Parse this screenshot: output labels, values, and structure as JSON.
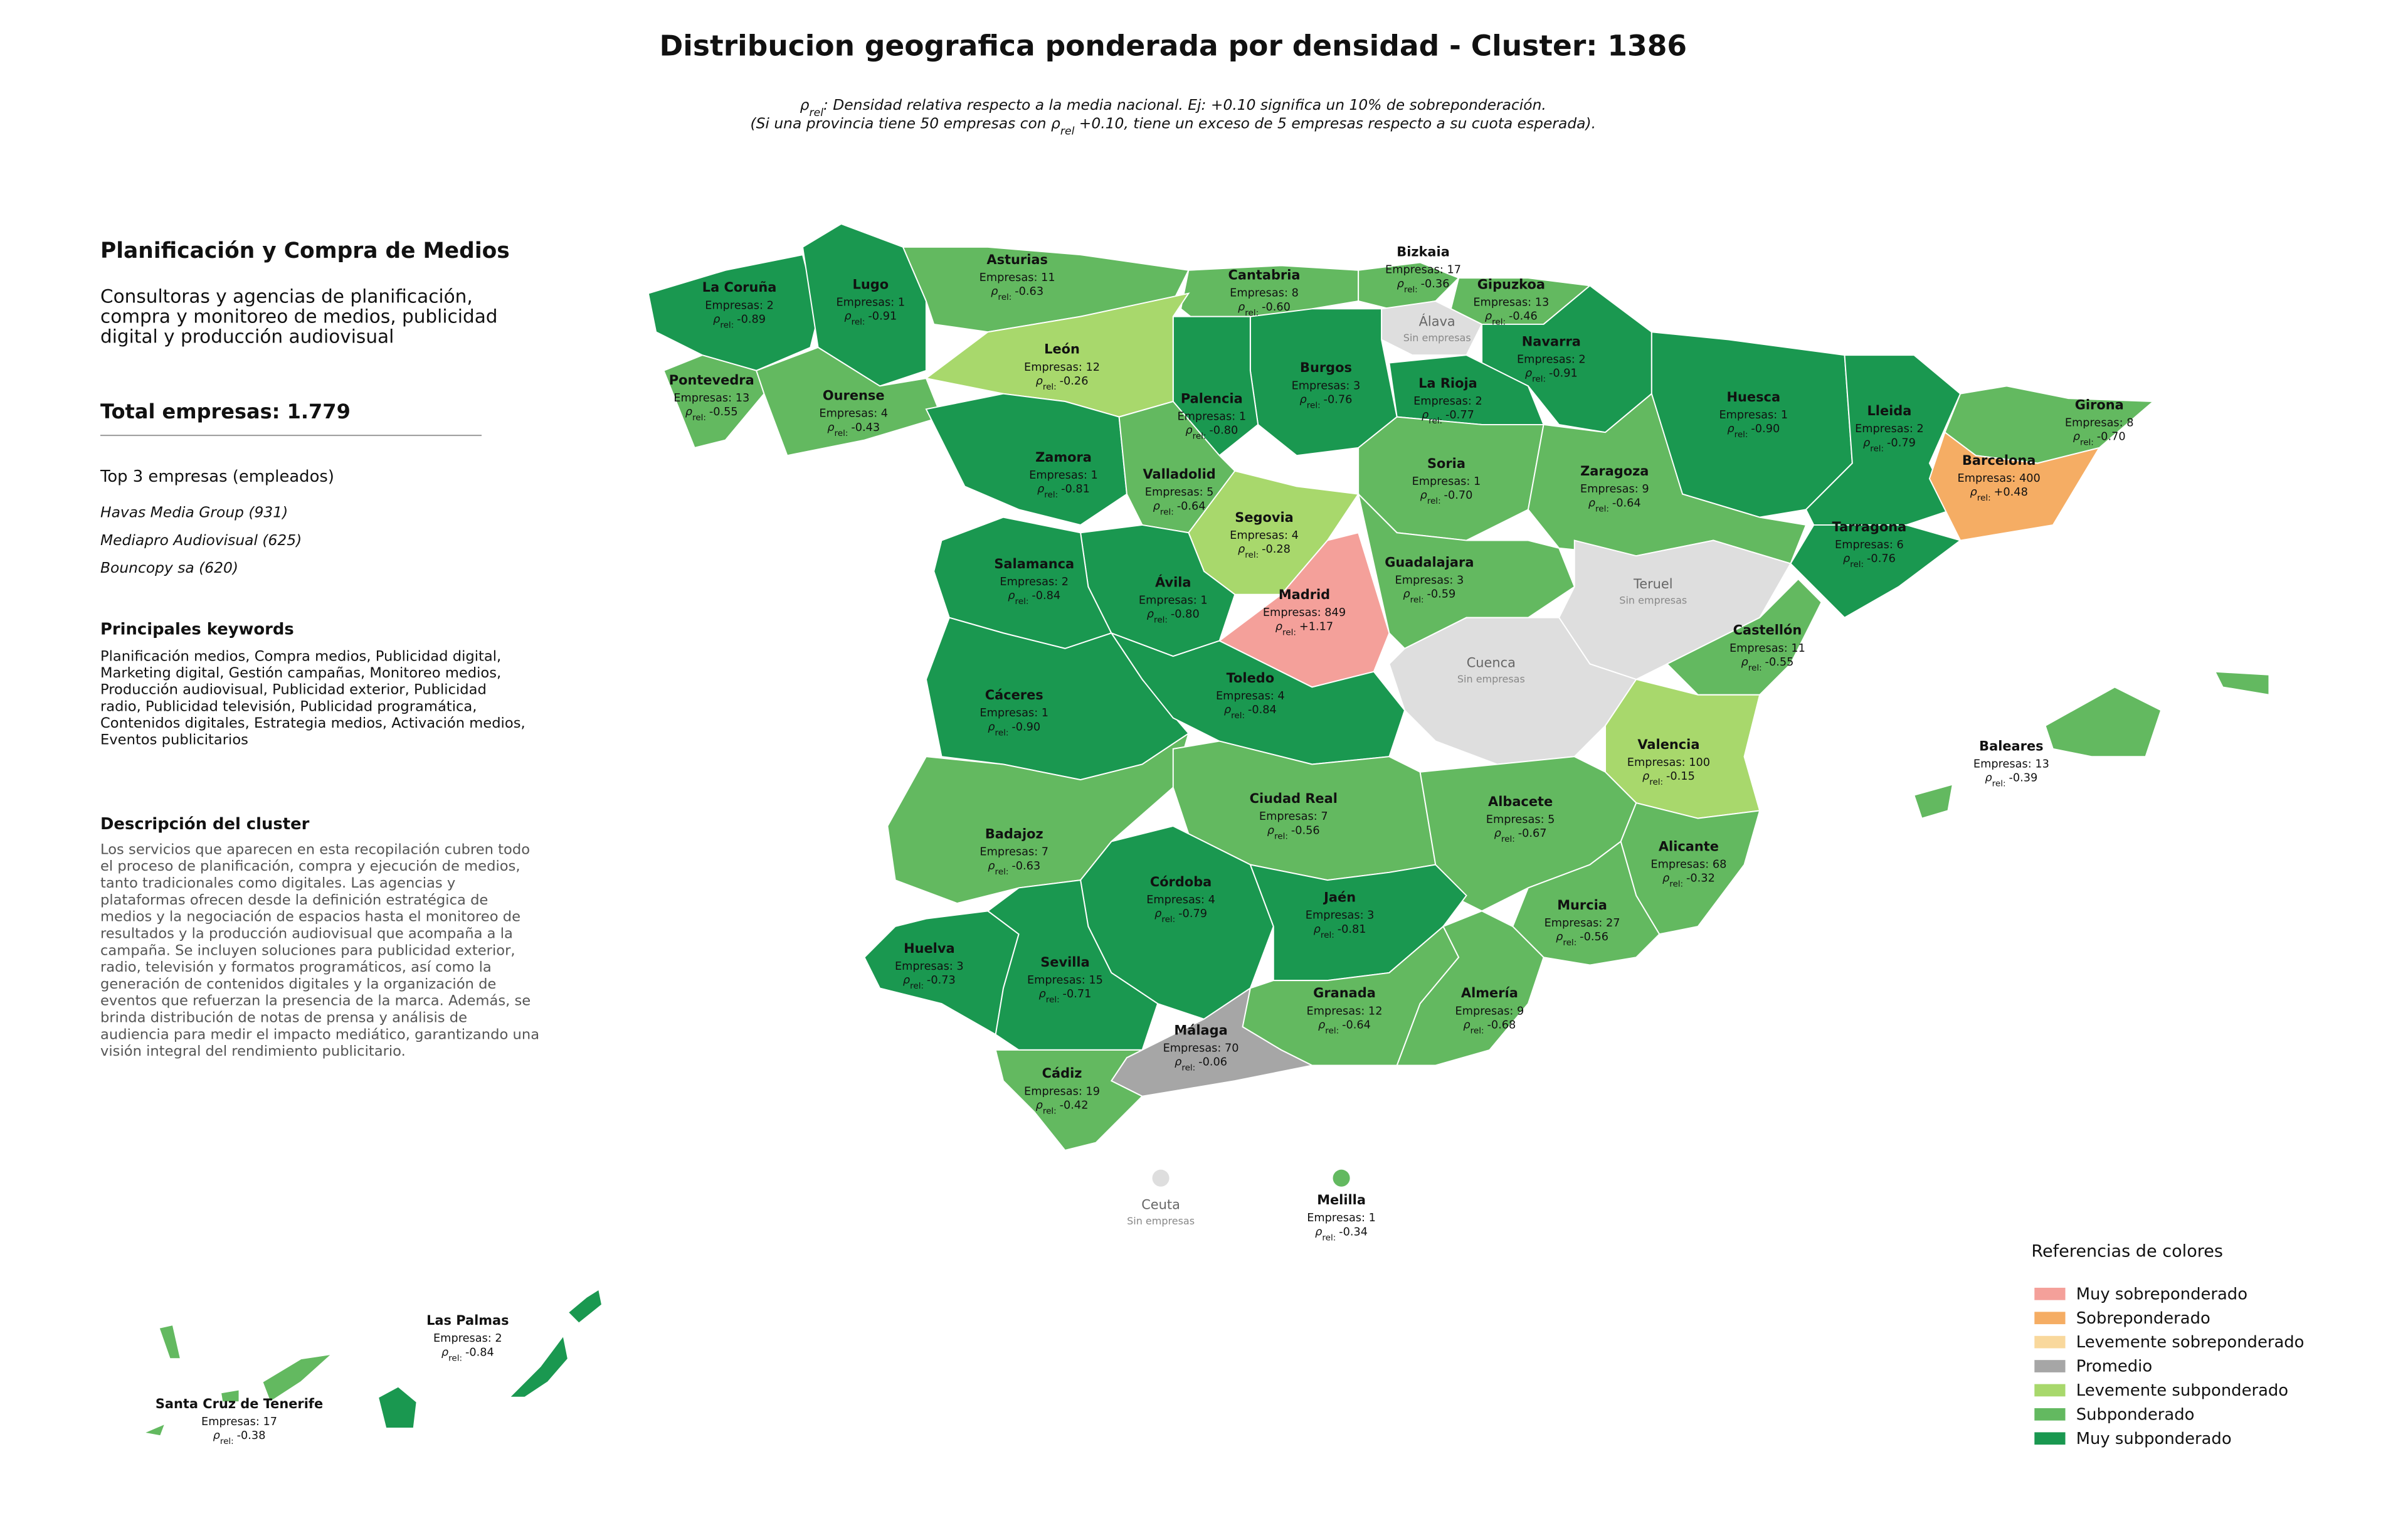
{
  "title": "Distribucion geografica ponderada por densidad - Cluster: 1386",
  "subtitle": [
    [
      {
        "sub_symbol": "ρ"
      },
      {
        "sub": "rel"
      },
      {
        "text": ": Densidad relativa respecto a la media nacional. Ej: +0.10 significa un 10% de sobreponderación."
      }
    ],
    [
      {
        "text": "(Si una provincia tiene 50 empresas con "
      },
      {
        "sub_symbol": "ρ"
      },
      {
        "sub": "rel"
      },
      {
        "text": " +0.10, tiene un exceso de 5 empresas respecto a su cuota esperada)."
      }
    ]
  ],
  "panel": {
    "heading": "Planificación y Compra de Medios",
    "description_lines": [
      "Consultoras y agencias de planificación,",
      "compra y monitoreo de medios, publicidad",
      "digital y producción audiovisual"
    ],
    "total": "Total empresas: 1.779",
    "top_title": "Top 3 empresas (empleados)",
    "top": [
      "Havas Media Group (931)",
      "Mediapro Audiovisual (625)",
      "Bouncopy sa (620)"
    ],
    "keywords_title": "Principales keywords",
    "keywords_lines": [
      "Planificación medios, Compra medios, Publicidad digital,",
      "Marketing digital, Gestión campañas, Monitoreo medios,",
      "Producción audiovisual, Publicidad exterior, Publicidad",
      "radio, Publicidad televisión, Publicidad programática,",
      "Contenidos digitales, Estrategia medios, Activación medios,",
      "Eventos publicitarios"
    ],
    "cluster_title": "Descripción del cluster",
    "cluster_lines": [
      "Los servicios que aparecen en esta recopilación cubren todo",
      "el proceso de planificación, compra y ejecución de medios,",
      "tanto tradicionales como digitales. Las agencias y",
      "plataformas ofrecen desde la definición estratégica de",
      "medios y la negociación de espacios hasta el monitoreo de",
      "resultados y la producción audiovisual que acompaña a la",
      "campaña. Se incluyen soluciones para publicidad exterior,",
      "radio, televisión y formatos programáticos, así como la",
      "generación de contenidos digitales y la organización de",
      "eventos que refuerzan la presencia de la marca. Además, se",
      "brinda distribución de notas de prensa y análisis de",
      "audiencia para medir el impacto mediático, garantizando una",
      "visión integral del rendimiento publicitario."
    ]
  },
  "rho_symbol": "ρ",
  "rho_subscript": "rel:",
  "no_data_color": "#dedede",
  "provinces": [
    {
      "name": "La Coruña",
      "empresas": "Empresas: 2",
      "rho": "-0.89",
      "color": "#1a9850"
    },
    {
      "name": "Lugo",
      "empresas": "Empresas: 1",
      "rho": "-0.91",
      "color": "#1a9850"
    },
    {
      "name": "Asturias",
      "empresas": "Empresas: 11",
      "rho": "-0.63",
      "color": "#63b960"
    },
    {
      "name": "Cantabria",
      "empresas": "Empresas: 8",
      "rho": "-0.60",
      "color": "#63b960"
    },
    {
      "name": "Bizkaia",
      "empresas": "Empresas: 17",
      "rho": "-0.36",
      "color": "#63b960"
    },
    {
      "name": "Gipuzkoa",
      "empresas": "Empresas: 13",
      "rho": "-0.46",
      "color": "#63b960"
    },
    {
      "name": "Álava",
      "status": "Sin empresas"
    },
    {
      "name": "Navarra",
      "empresas": "Empresas: 2",
      "rho": "-0.91",
      "color": "#1a9850"
    },
    {
      "name": "La Rioja",
      "empresas": "Empresas: 2",
      "rho": "-0.77",
      "color": "#1a9850"
    },
    {
      "name": "Burgos",
      "empresas": "Empresas: 3",
      "rho": "-0.76",
      "color": "#1a9850"
    },
    {
      "name": "Palencia",
      "empresas": "Empresas: 1",
      "rho": "-0.80",
      "color": "#1a9850"
    },
    {
      "name": "León",
      "empresas": "Empresas: 12",
      "rho": "-0.26",
      "color": "#a8d86c"
    },
    {
      "name": "Pontevedra",
      "empresas": "Empresas: 13",
      "rho": "-0.55",
      "color": "#63b960"
    },
    {
      "name": "Ourense",
      "empresas": "Empresas: 4",
      "rho": "-0.43",
      "color": "#63b960"
    },
    {
      "name": "Zamora",
      "empresas": "Empresas: 1",
      "rho": "-0.81",
      "color": "#1a9850"
    },
    {
      "name": "Valladolid",
      "empresas": "Empresas: 5",
      "rho": "-0.64",
      "color": "#63b960"
    },
    {
      "name": "Soria",
      "empresas": "Empresas: 1",
      "rho": "-0.70",
      "color": "#63b960"
    },
    {
      "name": "Huesca",
      "empresas": "Empresas: 1",
      "rho": "-0.90",
      "color": "#1a9850"
    },
    {
      "name": "Lleida",
      "empresas": "Empresas: 2",
      "rho": "-0.79",
      "color": "#1a9850"
    },
    {
      "name": "Girona",
      "empresas": "Empresas: 8",
      "rho": "-0.70",
      "color": "#63b960"
    },
    {
      "name": "Barcelona",
      "empresas": "Empresas: 400",
      "rho": "+0.48",
      "color": "#f5ad64"
    },
    {
      "name": "Tarragona",
      "empresas": "Empresas: 6",
      "rho": "-0.76",
      "color": "#1a9850"
    },
    {
      "name": "Zaragoza",
      "empresas": "Empresas: 9",
      "rho": "-0.64",
      "color": "#63b960"
    },
    {
      "name": "Segovia",
      "empresas": "Empresas: 4",
      "rho": "-0.28",
      "color": "#a8d86c"
    },
    {
      "name": "Ávila",
      "empresas": "Empresas: 1",
      "rho": "-0.80",
      "color": "#1a9850"
    },
    {
      "name": "Madrid",
      "empresas": "Empresas: 849",
      "rho": "+1.17",
      "color": "#f4a09a"
    },
    {
      "name": "Guadalajara",
      "empresas": "Empresas: 3",
      "rho": "-0.59",
      "color": "#63b960"
    },
    {
      "name": "Teruel",
      "status": "Sin empresas"
    },
    {
      "name": "Cuenca",
      "status": "Sin empresas"
    },
    {
      "name": "Salamanca",
      "empresas": "Empresas: 2",
      "rho": "-0.84",
      "color": "#1a9850"
    },
    {
      "name": "Cáceres",
      "empresas": "Empresas: 1",
      "rho": "-0.90",
      "color": "#1a9850"
    },
    {
      "name": "Toledo",
      "empresas": "Empresas: 4",
      "rho": "-0.84",
      "color": "#1a9850"
    },
    {
      "name": "Castellón",
      "empresas": "Empresas: 11",
      "rho": "-0.55",
      "color": "#63b960"
    },
    {
      "name": "Valencia",
      "empresas": "Empresas: 100",
      "rho": "-0.15",
      "color": "#a8d86c"
    },
    {
      "name": "Baleares",
      "empresas": "Empresas: 13",
      "rho": "-0.39",
      "color": "#63b960"
    },
    {
      "name": "Badajoz",
      "empresas": "Empresas: 7",
      "rho": "-0.63",
      "color": "#63b960"
    },
    {
      "name": "Ciudad Real",
      "empresas": "Empresas: 7",
      "rho": "-0.56",
      "color": "#63b960"
    },
    {
      "name": "Albacete",
      "empresas": "Empresas: 5",
      "rho": "-0.67",
      "color": "#63b960"
    },
    {
      "name": "Alicante",
      "empresas": "Empresas: 68",
      "rho": "-0.32",
      "color": "#63b960"
    },
    {
      "name": "Murcia",
      "empresas": "Empresas: 27",
      "rho": "-0.56",
      "color": "#63b960"
    },
    {
      "name": "Córdoba",
      "empresas": "Empresas: 4",
      "rho": "-0.79",
      "color": "#1a9850"
    },
    {
      "name": "Jaén",
      "empresas": "Empresas: 3",
      "rho": "-0.81",
      "color": "#1a9850"
    },
    {
      "name": "Huelva",
      "empresas": "Empresas: 3",
      "rho": "-0.73",
      "color": "#1a9850"
    },
    {
      "name": "Sevilla",
      "empresas": "Empresas: 15",
      "rho": "-0.71",
      "color": "#1a9850"
    },
    {
      "name": "Granada",
      "empresas": "Empresas: 12",
      "rho": "-0.64",
      "color": "#63b960"
    },
    {
      "name": "Almería",
      "empresas": "Empresas: 9",
      "rho": "-0.68",
      "color": "#63b960"
    },
    {
      "name": "Málaga",
      "empresas": "Empresas: 70",
      "rho": "-0.06",
      "color": "#a6a6a6"
    },
    {
      "name": "Cádiz",
      "empresas": "Empresas: 19",
      "rho": "-0.42",
      "color": "#63b960"
    },
    {
      "name": "Ceuta",
      "status": "Sin empresas"
    },
    {
      "name": "Melilla",
      "empresas": "Empresas: 1",
      "rho": "-0.34",
      "color": "#63b960"
    },
    {
      "name": "Las Palmas",
      "empresas": "Empresas: 2",
      "rho": "-0.84",
      "color": "#1a9850"
    },
    {
      "name": "Santa Cruz de Tenerife",
      "empresas": "Empresas: 17",
      "rho": "-0.38",
      "color": "#63b960"
    }
  ],
  "legend": {
    "title": "Referencias de colores",
    "items": [
      {
        "name": "Muy sobreponderado",
        "color": "#f4a09a"
      },
      {
        "name": "Sobreponderado",
        "color": "#f5ad64"
      },
      {
        "name": "Levemente sobreponderado",
        "color": "#f9d89c"
      },
      {
        "name": "Promedio",
        "color": "#a6a6a6"
      },
      {
        "name": "Levemente subponderado",
        "color": "#a8d86c"
      },
      {
        "name": "Subponderado",
        "color": "#63b960"
      },
      {
        "name": "Muy subponderado",
        "color": "#1a9850"
      }
    ]
  }
}
